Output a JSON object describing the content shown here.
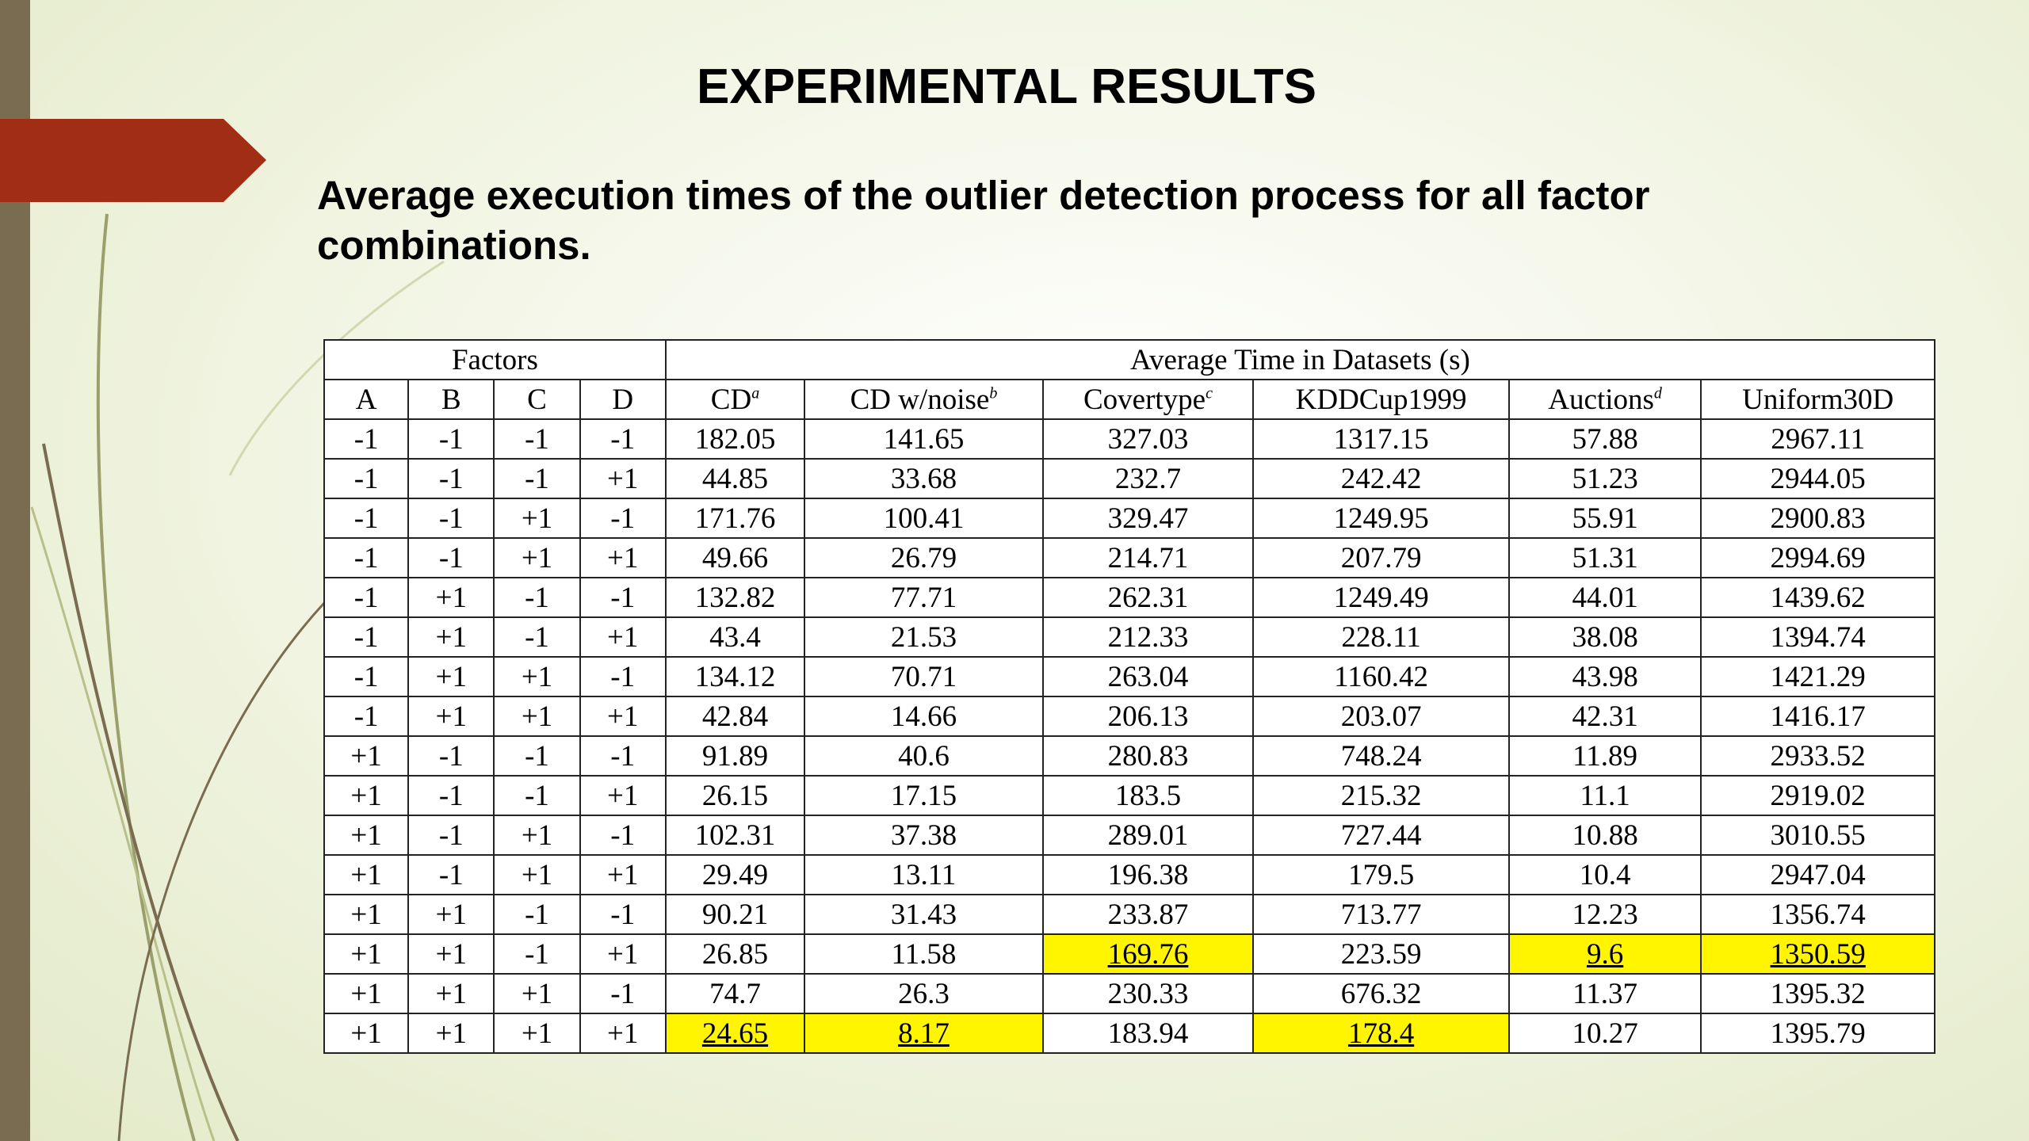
{
  "slide": {
    "title": "EXPERIMENTAL RESULTS",
    "subtitle": "Average execution times of the outlier detection process for all factor combinations."
  },
  "table": {
    "group_headers": {
      "factors": "Factors",
      "avg_time": "Average Time in Datasets (s)"
    },
    "columns": [
      {
        "label": "A"
      },
      {
        "label": "B"
      },
      {
        "label": "C"
      },
      {
        "label": "D"
      },
      {
        "label": "CD",
        "sup": "a"
      },
      {
        "label": "CD w/noise",
        "sup": "b"
      },
      {
        "label": "Covertype",
        "sup": "c"
      },
      {
        "label": "KDDCup1999"
      },
      {
        "label": "Auctions",
        "sup": "d"
      },
      {
        "label": "Uniform30D"
      }
    ],
    "rows": [
      [
        "-1",
        "-1",
        "-1",
        "-1",
        "182.05",
        "141.65",
        "327.03",
        "1317.15",
        "57.88",
        "2967.11"
      ],
      [
        "-1",
        "-1",
        "-1",
        "+1",
        "44.85",
        "33.68",
        "232.7",
        "242.42",
        "51.23",
        "2944.05"
      ],
      [
        "-1",
        "-1",
        "+1",
        "-1",
        "171.76",
        "100.41",
        "329.47",
        "1249.95",
        "55.91",
        "2900.83"
      ],
      [
        "-1",
        "-1",
        "+1",
        "+1",
        "49.66",
        "26.79",
        "214.71",
        "207.79",
        "51.31",
        "2994.69"
      ],
      [
        "-1",
        "+1",
        "-1",
        "-1",
        "132.82",
        "77.71",
        "262.31",
        "1249.49",
        "44.01",
        "1439.62"
      ],
      [
        "-1",
        "+1",
        "-1",
        "+1",
        "43.4",
        "21.53",
        "212.33",
        "228.11",
        "38.08",
        "1394.74"
      ],
      [
        "-1",
        "+1",
        "+1",
        "-1",
        "134.12",
        "70.71",
        "263.04",
        "1160.42",
        "43.98",
        "1421.29"
      ],
      [
        "-1",
        "+1",
        "+1",
        "+1",
        "42.84",
        "14.66",
        "206.13",
        "203.07",
        "42.31",
        "1416.17"
      ],
      [
        "+1",
        "-1",
        "-1",
        "-1",
        "91.89",
        "40.6",
        "280.83",
        "748.24",
        "11.89",
        "2933.52"
      ],
      [
        "+1",
        "-1",
        "-1",
        "+1",
        "26.15",
        "17.15",
        "183.5",
        "215.32",
        "11.1",
        "2919.02"
      ],
      [
        "+1",
        "-1",
        "+1",
        "-1",
        "102.31",
        "37.38",
        "289.01",
        "727.44",
        "10.88",
        "3010.55"
      ],
      [
        "+1",
        "-1",
        "+1",
        "+1",
        "29.49",
        "13.11",
        "196.38",
        "179.5",
        "10.4",
        "2947.04"
      ],
      [
        "+1",
        "+1",
        "-1",
        "-1",
        "90.21",
        "31.43",
        "233.87",
        "713.77",
        "12.23",
        "1356.74"
      ],
      [
        "+1",
        "+1",
        "-1",
        "+1",
        "26.85",
        "11.58",
        "169.76",
        "223.59",
        "9.6",
        "1350.59"
      ],
      [
        "+1",
        "+1",
        "+1",
        "-1",
        "74.7",
        "26.3",
        "230.33",
        "676.32",
        "11.37",
        "1395.32"
      ],
      [
        "+1",
        "+1",
        "+1",
        "+1",
        "24.65",
        "8.17",
        "183.94",
        "178.4",
        "10.27",
        "1395.79"
      ]
    ],
    "highlight_cells": [
      [
        13,
        6
      ],
      [
        13,
        8
      ],
      [
        13,
        9
      ],
      [
        15,
        4
      ],
      [
        15,
        5
      ],
      [
        15,
        7
      ]
    ],
    "highlight_color": "#fff500"
  },
  "colors": {
    "accent_arrow": "#a12e14",
    "left_bar": "#7a6c50"
  }
}
